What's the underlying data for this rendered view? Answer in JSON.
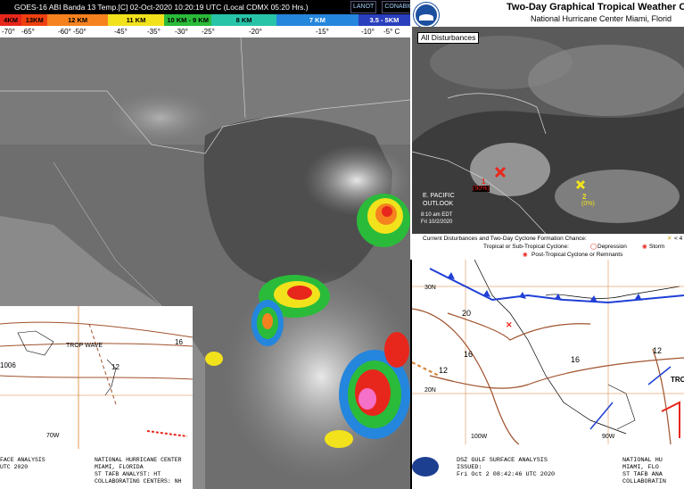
{
  "satellite": {
    "title": "GOES-16 ABI Banda 13 Temp.[C] 02-Oct-2020 10:20:19 UTC (Local CDMX  05:20 Hrs.)",
    "logos": [
      "LANOT",
      "CONABIO"
    ],
    "height_bands": [
      {
        "label": "4KM",
        "color": "#e8271c"
      },
      {
        "label": "13KM",
        "color": "#f04010"
      },
      {
        "label": "12 KM",
        "color": "#f5821f"
      },
      {
        "label": "11 KM",
        "color": "#f2e21c"
      },
      {
        "label": "10 KM - 9 KM",
        "color": "#2bbb3a"
      },
      {
        "label": "8 KM",
        "color": "#27c4a8"
      },
      {
        "label": "7 KM",
        "color": "#2486dd"
      },
      {
        "label": "3.5 - 5KM",
        "color": "#2a3fbd"
      }
    ],
    "temps": [
      "-70°",
      "-65°",
      "-60° -50°",
      "-45°",
      "-35°",
      "-30°",
      "-25°",
      "-20°",
      "-15°",
      "-10°",
      "-5° C"
    ]
  },
  "inset_map": {
    "labels": [
      "TROP WAVE",
      "16",
      "12",
      "1006",
      "70W"
    ],
    "footer_left": [
      "FACE ANALYSIS",
      "",
      "UTC 2020"
    ],
    "footer_right": [
      "NATIONAL HURRICANE CENTER",
      "MIAMI, FLORIDA",
      "ST TAFB ANALYST: HT",
      "COLLABORATING CENTERS: NH"
    ]
  },
  "two_day": {
    "title": "Two-Day Graphical Tropical Weather O",
    "subtitle": "National Hurricane Center  Miami, Florid",
    "tab_label": "All Disturbances",
    "eastpac_label": [
      "E. PACIFIC",
      "OUTLOOK"
    ],
    "time_label": [
      "8:10 am EDT",
      "Fri 10/2/2020"
    ],
    "disturbance_1": {
      "number": "1",
      "chance": "(90%)"
    },
    "disturbance_2": {
      "number": "2",
      "chance": "(0%)"
    },
    "legend_line1": "Current Disturbances and Two-Day Cyclone Formation Chance:",
    "legend_line2": "Tropical or Sub-Tropical Cyclone:",
    "legend_depression": "Depression",
    "legend_storm": "Storm",
    "legend_post": "Post-Tropical Cyclone or Remnants",
    "legend_low": "< 4"
  },
  "surface": {
    "isobars": [
      "20",
      "16",
      "12",
      "16",
      "12"
    ],
    "lat_labels": [
      "30N",
      "20N"
    ],
    "lon_labels": [
      "100W",
      "90W"
    ],
    "trop_label": "TRO",
    "footer_left": [
      "DSZ GULF SURFACE ANALYSIS",
      "ISSUED:",
      "Fri Oct 2 08:42:46 UTC 2020"
    ],
    "footer_right": [
      "NATIONAL HU",
      "MIAMI, FLO",
      "ST TAFB ANA",
      "COLLABORATIN"
    ]
  }
}
